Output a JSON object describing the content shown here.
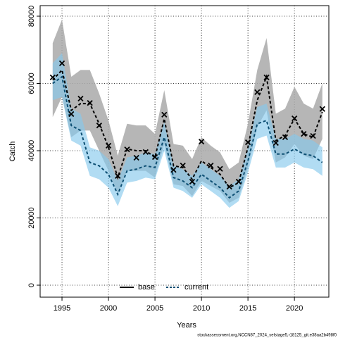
{
  "chart_data": {
    "type": "line",
    "x_label": "Years",
    "y_label": "Catch",
    "footer": "stockassessment.org,NCCN87_2024_selstage5,r18125_git.e38aa2b498f0",
    "x": [
      1994,
      1995,
      1996,
      1997,
      1998,
      1999,
      2000,
      2001,
      2002,
      2003,
      2004,
      2005,
      2006,
      2007,
      2008,
      2009,
      2010,
      2011,
      2012,
      2013,
      2014,
      2015,
      2016,
      2017,
      2018,
      2019,
      2020,
      2021,
      2022,
      2023
    ],
    "xlim": [
      1992.65,
      2023.7
    ],
    "xticks": [
      1995,
      2000,
      2005,
      2010,
      2015,
      2020
    ],
    "ylim": [
      -3560,
      83140
    ],
    "yticks": [
      0,
      20000,
      40000,
      60000,
      80000
    ],
    "grid": true,
    "legend": "bottom",
    "series": [
      {
        "name": "base",
        "color": "#000000",
        "band_color": "#a9a9a9",
        "values": [
          61000,
          64000,
          52000,
          54000,
          54000,
          48000,
          41000,
          32000,
          40500,
          40000,
          40000,
          38000,
          49500,
          35500,
          35000,
          31500,
          37000,
          35000,
          33000,
          29000,
          30500,
          41000,
          55000,
          62000,
          43000,
          44500,
          49500,
          45000,
          44000,
          51500
        ],
        "lower": [
          50000,
          56000,
          44000,
          46000,
          46000,
          40000,
          34000,
          27000,
          34000,
          34000,
          34000,
          32000,
          42000,
          30000,
          29500,
          26500,
          31000,
          29500,
          28000,
          24500,
          26000,
          35000,
          47000,
          52000,
          36500,
          38000,
          42000,
          38500,
          37500,
          43500
        ],
        "upper": [
          72000,
          79000,
          62000,
          64000,
          64000,
          57000,
          49000,
          38500,
          48000,
          47500,
          47500,
          45000,
          58000,
          42000,
          41500,
          37500,
          44000,
          41500,
          39500,
          34500,
          36500,
          48000,
          64000,
          73500,
          51000,
          52500,
          59000,
          54000,
          52500,
          60000
        ]
      },
      {
        "name": "current",
        "color": "#0d4f73",
        "band_color": "#87c9ec",
        "values": [
          60000,
          62000,
          47500,
          46000,
          36500,
          35500,
          33000,
          27000,
          34000,
          34500,
          35500,
          35000,
          44000,
          32000,
          31000,
          29000,
          33000,
          31000,
          29000,
          26000,
          28000,
          37000,
          48000,
          49000,
          39000,
          39000,
          40500,
          39000,
          38500,
          36500
        ],
        "lower": [
          55000,
          56000,
          43000,
          41500,
          32500,
          31500,
          29000,
          23500,
          30500,
          31000,
          32000,
          31500,
          40000,
          29000,
          28000,
          26000,
          30000,
          28000,
          26000,
          23000,
          25000,
          33500,
          43500,
          44500,
          35000,
          35000,
          36500,
          35000,
          34500,
          32500
        ],
        "upper": [
          66000,
          69000,
          52500,
          51000,
          41000,
          40000,
          37500,
          31000,
          38000,
          38500,
          39500,
          39000,
          48500,
          35500,
          34500,
          32500,
          36500,
          34500,
          32500,
          29500,
          31500,
          41000,
          53000,
          54000,
          43500,
          43500,
          45000,
          43500,
          43000,
          41000
        ]
      }
    ],
    "observations": {
      "color": "#000000",
      "values": [
        61800,
        66000,
        50900,
        55500,
        54200,
        47500,
        41500,
        32500,
        40400,
        37900,
        39600,
        38100,
        50700,
        34300,
        35600,
        30800,
        42700,
        35600,
        34600,
        29300,
        30800,
        42500,
        57400,
        61800,
        42300,
        44000,
        49600,
        45000,
        44400,
        52400
      ]
    }
  }
}
